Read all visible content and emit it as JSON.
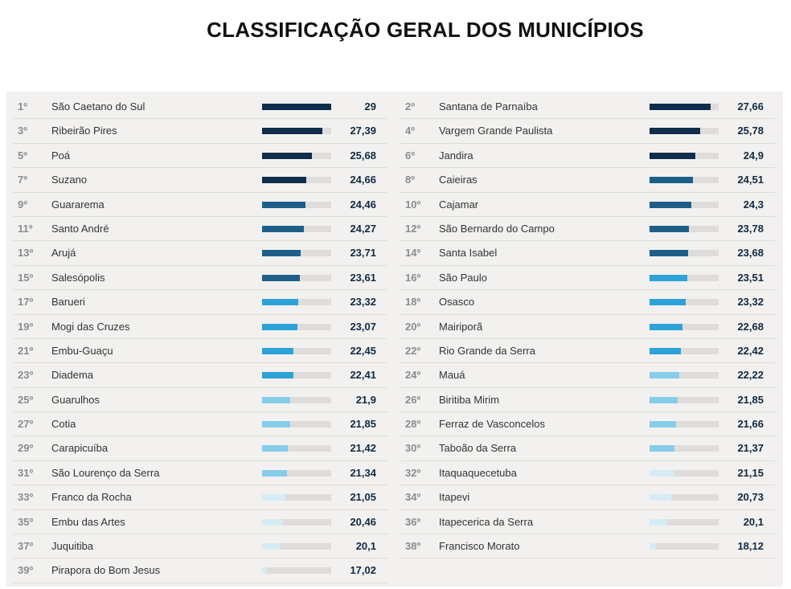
{
  "title": "CLASSIFICAÇÃO GERAL DOS MUNICÍPIOS",
  "colors": {
    "tier1": "#0f2d4d",
    "tier2": "#1e5f8a",
    "tier3": "#2ca2d8",
    "tier4": "#86cdea",
    "tier5": "#d6ecf5",
    "track": "#dedddb"
  },
  "chart_data": {
    "type": "bar",
    "orientation": "horizontal",
    "title": "CLASSIFICAÇÃO GERAL DOS MUNICÍPIOS",
    "xlim": [
      17,
      29
    ],
    "columns": 2,
    "rows": [
      {
        "rank": "1º",
        "name": "São Caetano do Sul",
        "value": 29,
        "label": "29",
        "tier": 1
      },
      {
        "rank": "2º",
        "name": "Santana de Parnaíba",
        "value": 27.66,
        "label": "27,66",
        "tier": 1
      },
      {
        "rank": "3º",
        "name": "Ribeirão Pires",
        "value": 27.39,
        "label": "27,39",
        "tier": 1
      },
      {
        "rank": "4º",
        "name": "Vargem Grande Paulista",
        "value": 25.78,
        "label": "25,78",
        "tier": 1
      },
      {
        "rank": "5º",
        "name": "Poá",
        "value": 25.68,
        "label": "25,68",
        "tier": 1
      },
      {
        "rank": "6º",
        "name": "Jandira",
        "value": 24.9,
        "label": "24,9",
        "tier": 1
      },
      {
        "rank": "7º",
        "name": "Suzano",
        "value": 24.66,
        "label": "24,66",
        "tier": 1
      },
      {
        "rank": "8º",
        "name": "Caieiras",
        "value": 24.51,
        "label": "24,51",
        "tier": 2
      },
      {
        "rank": "9º",
        "name": "Guararema",
        "value": 24.46,
        "label": "24,46",
        "tier": 2
      },
      {
        "rank": "10º",
        "name": "Cajamar",
        "value": 24.3,
        "label": "24,3",
        "tier": 2
      },
      {
        "rank": "11º",
        "name": "Santo André",
        "value": 24.27,
        "label": "24,27",
        "tier": 2
      },
      {
        "rank": "12º",
        "name": "São Bernardo do Campo",
        "value": 23.78,
        "label": "23,78",
        "tier": 2
      },
      {
        "rank": "13º",
        "name": "Arujá",
        "value": 23.71,
        "label": "23,71",
        "tier": 2
      },
      {
        "rank": "14º",
        "name": "Santa Isabel",
        "value": 23.68,
        "label": "23,68",
        "tier": 2
      },
      {
        "rank": "15º",
        "name": "Salesópolis",
        "value": 23.61,
        "label": "23,61",
        "tier": 2
      },
      {
        "rank": "16º",
        "name": "São Paulo",
        "value": 23.51,
        "label": "23,51",
        "tier": 3
      },
      {
        "rank": "17º",
        "name": "Barueri",
        "value": 23.32,
        "label": "23,32",
        "tier": 3
      },
      {
        "rank": "18º",
        "name": "Osasco",
        "value": 23.32,
        "label": "23,32",
        "tier": 3
      },
      {
        "rank": "19º",
        "name": "Mogi das Cruzes",
        "value": 23.07,
        "label": "23,07",
        "tier": 3
      },
      {
        "rank": "20º",
        "name": "Mairiporã",
        "value": 22.68,
        "label": "22,68",
        "tier": 3
      },
      {
        "rank": "21º",
        "name": "Embu-Guaçu",
        "value": 22.45,
        "label": "22,45",
        "tier": 3
      },
      {
        "rank": "22º",
        "name": "Rio Grande da Serra",
        "value": 22.42,
        "label": "22,42",
        "tier": 3
      },
      {
        "rank": "23º",
        "name": "Diadema",
        "value": 22.41,
        "label": "22,41",
        "tier": 3
      },
      {
        "rank": "24º",
        "name": "Mauá",
        "value": 22.22,
        "label": "22,22",
        "tier": 4
      },
      {
        "rank": "25º",
        "name": "Guarulhos",
        "value": 21.9,
        "label": "21,9",
        "tier": 4
      },
      {
        "rank": "26º",
        "name": "Biritiba Mirim",
        "value": 21.85,
        "label": "21,85",
        "tier": 4
      },
      {
        "rank": "27º",
        "name": "Cotia",
        "value": 21.85,
        "label": "21,85",
        "tier": 4
      },
      {
        "rank": "28º",
        "name": "Ferraz de Vasconcelos",
        "value": 21.66,
        "label": "21,66",
        "tier": 4
      },
      {
        "rank": "29º",
        "name": "Carapicuíba",
        "value": 21.42,
        "label": "21,42",
        "tier": 4
      },
      {
        "rank": "30º",
        "name": "Taboão da Serra",
        "value": 21.37,
        "label": "21,37",
        "tier": 4
      },
      {
        "rank": "31º",
        "name": "São Lourenço da Serra",
        "value": 21.34,
        "label": "21,34",
        "tier": 4
      },
      {
        "rank": "32º",
        "name": "Itaquaquecetuba",
        "value": 21.15,
        "label": "21,15",
        "tier": 5
      },
      {
        "rank": "33º",
        "name": "Franco da Rocha",
        "value": 21.05,
        "label": "21,05",
        "tier": 5
      },
      {
        "rank": "34º",
        "name": "Itapevi",
        "value": 20.73,
        "label": "20,73",
        "tier": 5
      },
      {
        "rank": "35º",
        "name": "Embu das Artes",
        "value": 20.46,
        "label": "20,46",
        "tier": 5
      },
      {
        "rank": "36º",
        "name": "Itapecerica da Serra",
        "value": 20.1,
        "label": "20,1",
        "tier": 5
      },
      {
        "rank": "37º",
        "name": "Juquitiba",
        "value": 20.1,
        "label": "20,1",
        "tier": 5
      },
      {
        "rank": "38º",
        "name": "Francisco Morato",
        "value": 18.12,
        "label": "18,12",
        "tier": 5
      },
      {
        "rank": "39º",
        "name": "Pirapora do Bom Jesus",
        "value": 17.02,
        "label": "17,02",
        "tier": 5
      }
    ]
  }
}
